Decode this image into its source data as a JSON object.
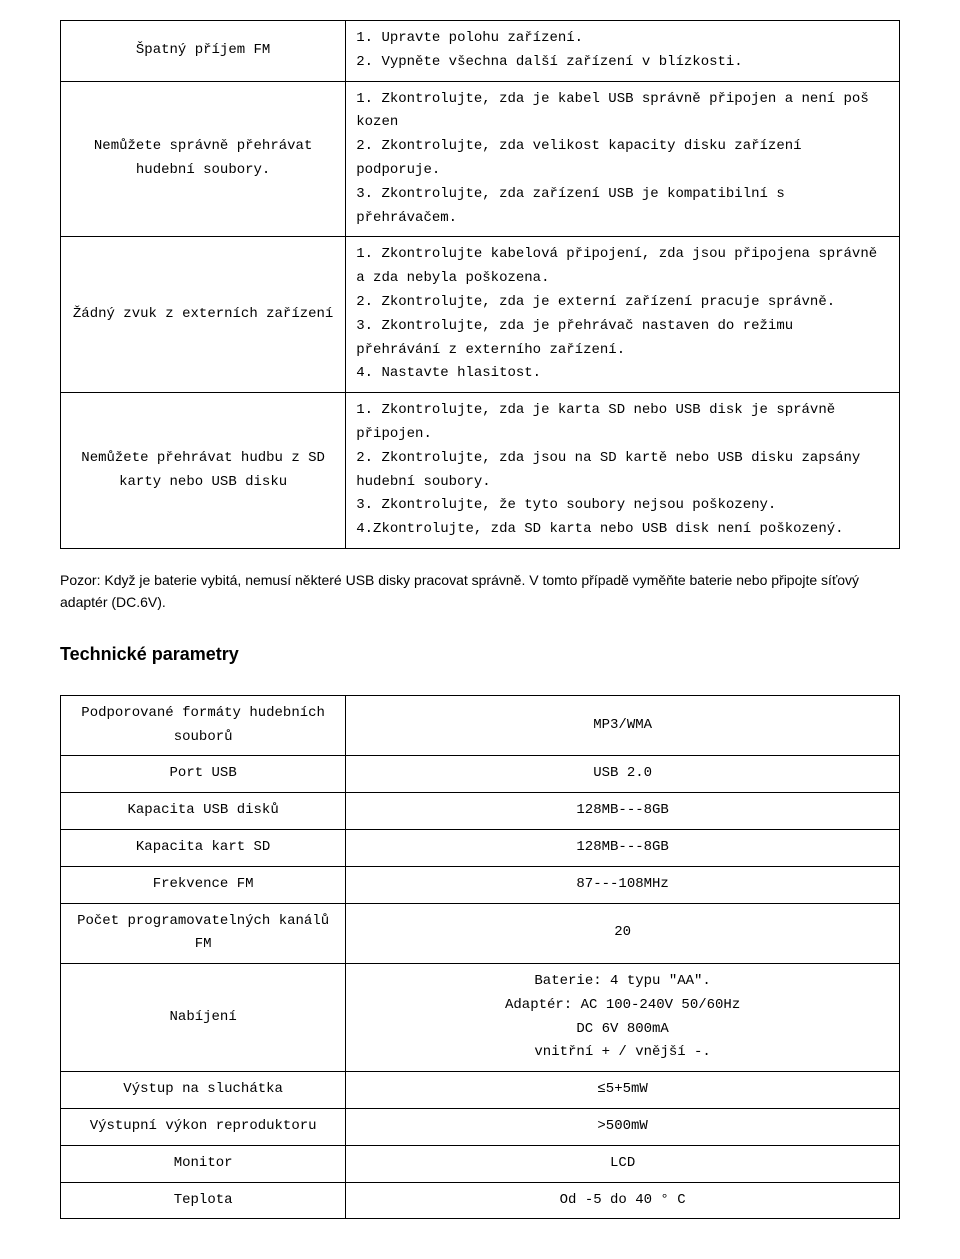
{
  "troubleshooting": {
    "rows": [
      {
        "problem": "Špatný příjem FM",
        "solution": "1. Upravte polohu zařízení.\n2. Vypněte všechna další zařízení v blízkosti."
      },
      {
        "problem": "Nemůžete správně přehrávat hudební soubory.",
        "solution": "1. Zkontrolujte, zda je kabel USB správně připojen a není poš kozen\n2. Zkontrolujte, zda velikost kapacity disku zařízení podporuje.\n3. Zkontrolujte, zda zařízení USB je kompatibilní s\n   přehrávačem."
      },
      {
        "problem": "Žádný zvuk z externích zařízení",
        "solution": "1. Zkontrolujte kabelová připojení, zda jsou připojena správně a zda nebyla poškozena.\n2. Zkontrolujte, zda je externí zařízení pracuje správně.\n3. Zkontrolujte, zda je přehrávač nastaven do režimu\n   přehrávání z externího zařízení.\n4. Nastavte hlasitost."
      },
      {
        "problem": "Nemůžete přehrávat hudbu z SD karty nebo USB disku",
        "solution": "1. Zkontrolujte, zda je karta SD nebo USB disk je správně připojen.\n2. Zkontrolujte, zda jsou na SD kartě nebo USB disku zapsány hudební soubory.\n3. Zkontrolujte, že tyto soubory nejsou poškozeny.\n4.Zkontrolujte, zda SD karta nebo USB disk není poškozený."
      }
    ]
  },
  "note": "Pozor: Když je baterie vybitá, nemusí některé USB disky pracovat správně. V tomto případě vyměňte baterie nebo připojte síťový adaptér (DC.6V).",
  "specs_title": "Technické parametry",
  "specs": {
    "rows": [
      {
        "label": "Podporované formáty hudebních souborů",
        "value": "MP3/WMA"
      },
      {
        "label": "Port USB",
        "value": "USB 2.0"
      },
      {
        "label": "Kapacita USB disků",
        "value": "128MB---8GB"
      },
      {
        "label": "Kapacita kart SD",
        "value": "128MB---8GB"
      },
      {
        "label": "Frekvence FM",
        "value": "87---108MHz"
      },
      {
        "label": "Počet programovatelných kanálů FM",
        "value": "20"
      },
      {
        "label": "Nabíjení",
        "value": "Baterie: 4 typu \"AA\".\nAdaptér: AC 100-240V 50/60Hz\nDC 6V  800mA\nvnitřní + / vnější -."
      },
      {
        "label": "Výstup na sluchátka",
        "value": "≤5+5mW"
      },
      {
        "label": "Výstupní výkon reproduktoru",
        "value": ">500mW"
      },
      {
        "label": "Monitor",
        "value": "LCD"
      },
      {
        "label": "Teplota",
        "value": "Od -5 do 40 ° C"
      }
    ]
  }
}
